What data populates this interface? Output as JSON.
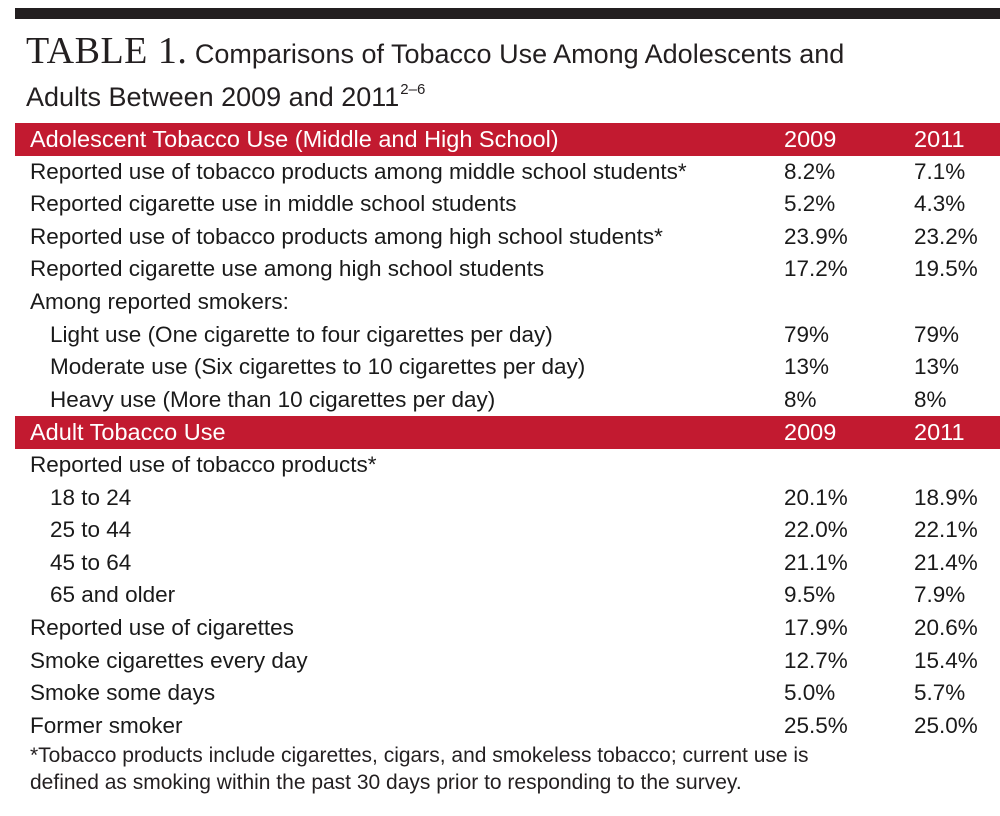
{
  "title": {
    "label": "TABLE 1.",
    "line1": "Comparisons of Tobacco Use Among Adolescents and",
    "line2": "Adults Between 2009 and 2011",
    "superscript": "2–6"
  },
  "colors": {
    "header_background": "#c21a30",
    "header_text": "#ffffff",
    "top_rule": "#231f20"
  },
  "rows": [
    {
      "type": "header",
      "label": "Adolescent Tobacco Use (Middle and High School)",
      "v2009": "2009",
      "v2011": "2011"
    },
    {
      "type": "data",
      "indent": false,
      "label": "Reported use of tobacco products among middle school students*",
      "v2009": "8.2%",
      "v2011": "7.1%"
    },
    {
      "type": "data",
      "indent": false,
      "label": "Reported cigarette use in middle school students",
      "v2009": "5.2%",
      "v2011": "4.3%"
    },
    {
      "type": "data",
      "indent": false,
      "label": "Reported use of tobacco products among high school students*",
      "v2009": "23.9%",
      "v2011": "23.2%"
    },
    {
      "type": "data",
      "indent": false,
      "label": "Reported cigarette use among high school students",
      "v2009": "17.2%",
      "v2011": "19.5%"
    },
    {
      "type": "data",
      "indent": false,
      "label": "Among reported smokers:",
      "v2009": "",
      "v2011": ""
    },
    {
      "type": "data",
      "indent": true,
      "label": "Light use (One cigarette to four cigarettes per day)",
      "v2009": "79%",
      "v2011": "79%"
    },
    {
      "type": "data",
      "indent": true,
      "label": "Moderate use (Six cigarettes to 10 cigarettes per day)",
      "v2009": "13%",
      "v2011": "13%"
    },
    {
      "type": "data",
      "indent": true,
      "label": "Heavy use (More than 10 cigarettes per day)",
      "v2009": "8%",
      "v2011": "8%"
    },
    {
      "type": "header",
      "label": "Adult Tobacco Use",
      "v2009": "2009",
      "v2011": "2011"
    },
    {
      "type": "data",
      "indent": false,
      "label": "Reported use of tobacco products*",
      "v2009": "",
      "v2011": ""
    },
    {
      "type": "data",
      "indent": true,
      "label": "18 to 24",
      "v2009": "20.1%",
      "v2011": "18.9%"
    },
    {
      "type": "data",
      "indent": true,
      "label": "25 to 44",
      "v2009": "22.0%",
      "v2011": "22.1%"
    },
    {
      "type": "data",
      "indent": true,
      "label": "45 to 64",
      "v2009": "21.1%",
      "v2011": "21.4%"
    },
    {
      "type": "data",
      "indent": true,
      "label": "65 and older",
      "v2009": "9.5%",
      "v2011": "7.9%"
    },
    {
      "type": "data",
      "indent": false,
      "label": "Reported use of cigarettes",
      "v2009": "17.9%",
      "v2011": "20.6%"
    },
    {
      "type": "data",
      "indent": false,
      "label": "Smoke cigarettes every day",
      "v2009": "12.7%",
      "v2011": "15.4%"
    },
    {
      "type": "data",
      "indent": false,
      "label": "Smoke some days",
      "v2009": "5.0%",
      "v2011": "5.7%"
    },
    {
      "type": "data",
      "indent": false,
      "label": "Former smoker",
      "v2009": "25.5%",
      "v2011": "25.0%"
    }
  ],
  "footnote": {
    "line1": "*Tobacco products include cigarettes, cigars, and smokeless tobacco; current use is",
    "line2": "defined as smoking within the past 30 days prior to responding to the survey."
  }
}
